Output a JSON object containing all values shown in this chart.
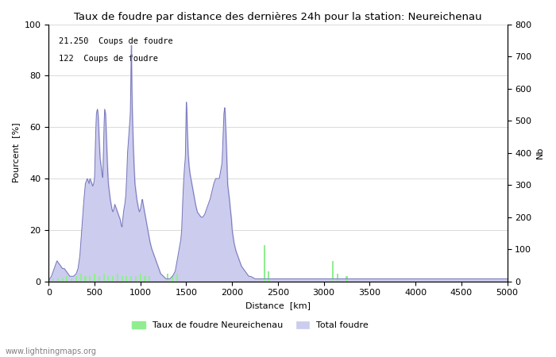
{
  "title": "Taux de foudre par distance des dernières 24h pour la station: Neureichenau",
  "xlabel": "Distance  [km]",
  "ylabel_left": "Pourcent  [%]",
  "ylabel_right": "Nb",
  "annotation_line1": "21.250  Coups de foudre",
  "annotation_line2": "122  Coups de foudre",
  "xlim": [
    0,
    5000
  ],
  "ylim_left": [
    0,
    100
  ],
  "ylim_right": [
    0,
    800
  ],
  "yticks_left": [
    0,
    20,
    40,
    60,
    80,
    100
  ],
  "yticks_right": [
    0,
    100,
    200,
    300,
    400,
    500,
    600,
    700,
    800
  ],
  "xticks": [
    0,
    500,
    1000,
    1500,
    2000,
    2500,
    3000,
    3500,
    4000,
    4500,
    5000
  ],
  "watermark": "www.lightningmaps.org",
  "legend_local_label": "Taux de foudre Neureichenau",
  "legend_total_label": "Total foudre",
  "local_color": "#90EE90",
  "total_fill_color": "#ccccee",
  "line_color": "#7777bb",
  "background_color": "#ffffff",
  "grid_color": "#cccccc"
}
